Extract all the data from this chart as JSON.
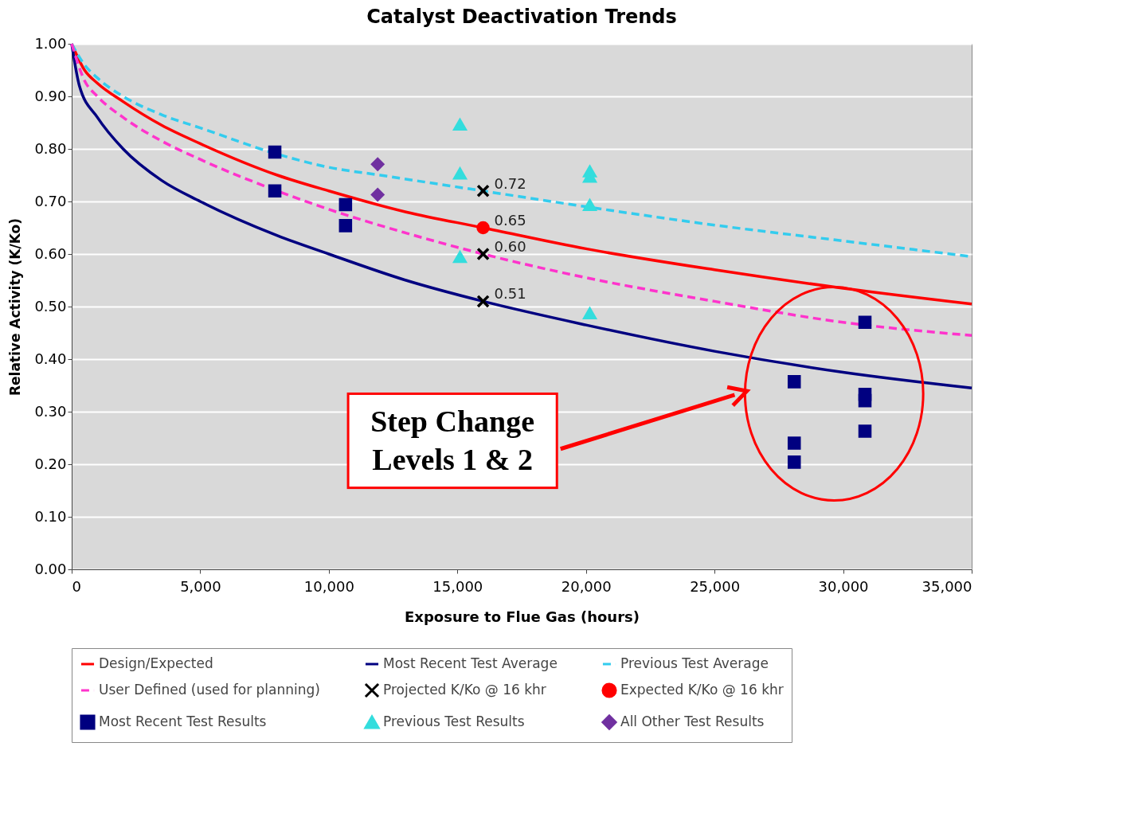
{
  "chart_data": {
    "type": "line",
    "title": "Catalyst Deactivation Trends",
    "xlabel": "Exposure to Flue Gas (hours)",
    "ylabel": "Relative Activity (K/Ko)",
    "xlim": [
      0,
      35000
    ],
    "xticks": [
      0,
      {
        "value": 5000,
        "label": "5,000"
      },
      {
        "value": 10000,
        "label": "10,000"
      },
      {
        "value": 15000,
        "label": "15,000"
      },
      {
        "value": 20000,
        "label": "20,000"
      },
      {
        "value": 25000,
        "label": "25,000"
      },
      {
        "value": 30000,
        "label": "30,000"
      },
      {
        "value": 35000,
        "label": "35,000"
      }
    ],
    "ylim": [
      0,
      1
    ],
    "yticks": [
      {
        "value": 0,
        "label": "0.00"
      },
      {
        "value": 0.1,
        "label": "0.10"
      },
      {
        "value": 0.2,
        "label": "0.20"
      },
      {
        "value": 0.3,
        "label": "0.30"
      },
      {
        "value": 0.4,
        "label": "0.40"
      },
      {
        "value": 0.5,
        "label": "0.50"
      },
      {
        "value": 0.6,
        "label": "0.60"
      },
      {
        "value": 0.7,
        "label": "0.70"
      },
      {
        "value": 0.8,
        "label": "0.80"
      },
      {
        "value": 0.9,
        "label": "0.90"
      },
      {
        "value": 1,
        "label": "1.00"
      }
    ],
    "grid": "y",
    "legend": "bottom",
    "annotations": [
      "Step Change Levels 1 & 2"
    ],
    "series": [
      {
        "name": "Design/Expected",
        "color": "#ff0000",
        "line_style": "solid",
        "x": [
          0,
          500,
          1000,
          2000,
          3500,
          5000,
          8000,
          10000,
          13000,
          16000,
          20000,
          25000,
          30000,
          35000
        ],
        "values": [
          1.0,
          0.95,
          0.925,
          0.89,
          0.845,
          0.81,
          0.75,
          0.72,
          0.68,
          0.65,
          0.61,
          0.57,
          0.535,
          0.505
        ]
      },
      {
        "name": "Most Recent Test Average",
        "color": "#000080",
        "line_style": "solid",
        "x": [
          0,
          300,
          1000,
          2000,
          3500,
          5000,
          8000,
          10000,
          13000,
          16000,
          20000,
          25000,
          30000,
          35000
        ],
        "values": [
          1.0,
          0.92,
          0.86,
          0.8,
          0.74,
          0.7,
          0.635,
          0.6,
          0.55,
          0.51,
          0.465,
          0.415,
          0.375,
          0.345
        ]
      },
      {
        "name": "Previous Test Average",
        "color": "#33ccee",
        "line_style": "dashed",
        "x": [
          0,
          500,
          1000,
          2000,
          3500,
          5000,
          8000,
          10000,
          12000,
          16000,
          20000,
          25000,
          30000,
          35000
        ],
        "values": [
          1.0,
          0.96,
          0.935,
          0.9,
          0.865,
          0.84,
          0.79,
          0.765,
          0.75,
          0.72,
          0.69,
          0.655,
          0.625,
          0.595
        ]
      },
      {
        "name": "User Defined (used for planning)",
        "color": "#ff33cc",
        "line_style": "dashed",
        "x": [
          0,
          500,
          1000,
          2000,
          3500,
          5000,
          8000,
          10000,
          13000,
          16000,
          20000,
          25000,
          30000,
          35000
        ],
        "values": [
          1.0,
          0.93,
          0.9,
          0.86,
          0.815,
          0.78,
          0.72,
          0.685,
          0.64,
          0.6,
          0.555,
          0.51,
          0.47,
          0.445
        ]
      },
      {
        "name": "Projected K/Ko @ 16 khr",
        "type": "scatter",
        "marker": "cross",
        "color": "#000000",
        "x": [
          16000,
          16000,
          16000
        ],
        "values": [
          0.72,
          0.6,
          0.51
        ],
        "value_labels": [
          "0.72",
          "0.60",
          "0.51"
        ]
      },
      {
        "name": "Expected K/Ko @ 16 khr",
        "type": "scatter",
        "marker": "circle",
        "color": "#ff0000",
        "x": [
          16000
        ],
        "values": [
          0.65
        ],
        "value_labels": [
          "0.65"
        ]
      },
      {
        "name": "Most Recent Test Results",
        "type": "scatter",
        "marker": "square",
        "color": "#000080",
        "x": [
          7900,
          7900,
          10650,
          10650,
          28100,
          28100,
          28100,
          30850,
          30850,
          30850,
          30850
        ],
        "values": [
          0.794,
          0.72,
          0.694,
          0.654,
          0.357,
          0.24,
          0.204,
          0.47,
          0.333,
          0.321,
          0.263
        ]
      },
      {
        "name": "Previous Test Results",
        "type": "scatter",
        "marker": "triangle",
        "color": "#33dddd",
        "x": [
          15100,
          15100,
          15100,
          20150,
          20150,
          20150,
          20150
        ],
        "values": [
          0.846,
          0.753,
          0.594,
          0.757,
          0.747,
          0.693,
          0.487
        ]
      },
      {
        "name": "All Other Test Results",
        "type": "scatter",
        "marker": "diamond",
        "color": "#7030a0",
        "x": [
          11900,
          11900
        ],
        "values": [
          0.771,
          0.713
        ]
      }
    ]
  }
}
